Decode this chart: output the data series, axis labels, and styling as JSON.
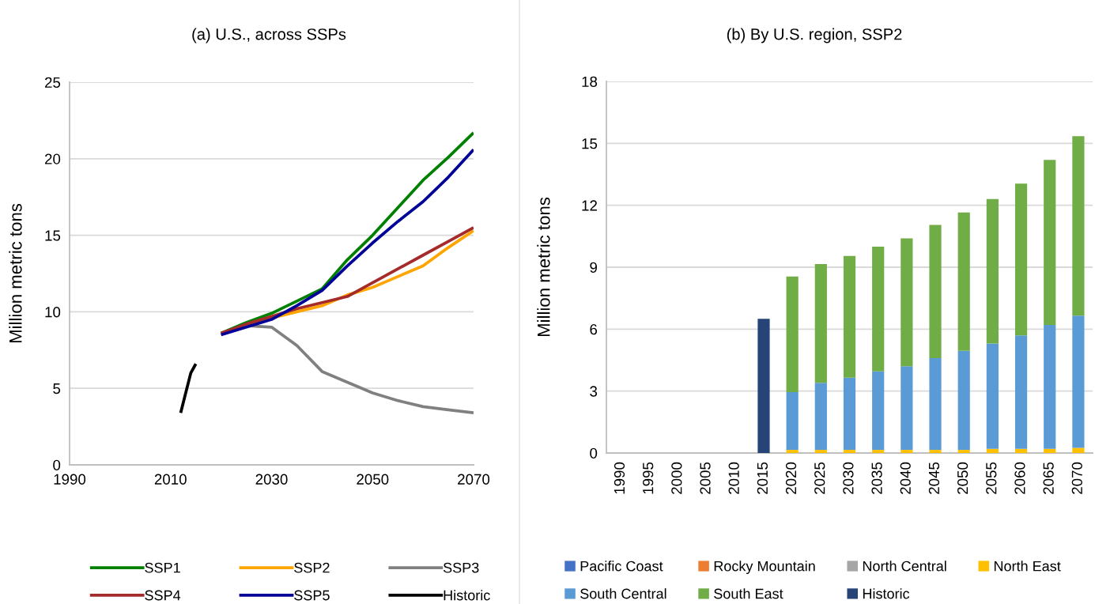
{
  "chart_data": [
    {
      "type": "line",
      "title": "(a) U.S., across SSPs",
      "ylabel": "Million metric tons",
      "x": [
        2020,
        2025,
        2030,
        2035,
        2040,
        2045,
        2050,
        2055,
        2060,
        2065,
        2070
      ],
      "xlim": [
        1990,
        2070
      ],
      "xticks": [
        1990,
        2010,
        2030,
        2050,
        2070
      ],
      "ylim": [
        0,
        25
      ],
      "yticks": [
        0,
        5,
        10,
        15,
        20,
        25
      ],
      "grid": "y",
      "legend": "bottom",
      "series": [
        {
          "name": "SSP1",
          "color": "#008000",
          "values": [
            8.6,
            9.3,
            9.9,
            10.7,
            11.5,
            13.4,
            15.0,
            16.8,
            18.6,
            20.1,
            21.7
          ]
        },
        {
          "name": "SSP2",
          "color": "#ffa500",
          "values": [
            8.6,
            9.1,
            9.6,
            10.0,
            10.4,
            11.1,
            11.6,
            12.3,
            13.0,
            14.2,
            15.3
          ]
        },
        {
          "name": "SSP3",
          "color": "#808080",
          "values": [
            8.6,
            9.1,
            9.0,
            7.8,
            6.1,
            5.4,
            4.7,
            4.2,
            3.8,
            3.6,
            3.4
          ]
        },
        {
          "name": "SSP4",
          "color": "#a52a2a",
          "values": [
            8.6,
            9.2,
            9.7,
            10.2,
            10.6,
            11.0,
            11.9,
            12.8,
            13.7,
            14.6,
            15.5
          ]
        },
        {
          "name": "SSP5",
          "color": "#000099",
          "values": [
            8.5,
            9.0,
            9.5,
            10.4,
            11.4,
            13.0,
            14.5,
            15.9,
            17.2,
            18.8,
            20.6
          ]
        },
        {
          "name": "Historic",
          "color": "#000000",
          "x": [
            2012,
            2014,
            2015
          ],
          "values": [
            3.4,
            6.0,
            6.6
          ]
        }
      ]
    },
    {
      "type": "bar",
      "stacked": true,
      "title": "(b) By U.S. region, SSP2",
      "ylabel": "Million metric tons",
      "categories": [
        "1990",
        "1995",
        "2000",
        "2005",
        "2010",
        "2015",
        "2020",
        "2025",
        "2030",
        "2035",
        "2040",
        "2045",
        "2050",
        "2055",
        "2060",
        "2065",
        "2070"
      ],
      "ylim": [
        0,
        18
      ],
      "yticks": [
        0,
        3,
        6,
        9,
        12,
        15,
        18
      ],
      "grid": "y",
      "legend": "bottom",
      "series": [
        {
          "name": "Pacific Coast",
          "color": "#4472c4",
          "values": [
            null,
            null,
            null,
            null,
            null,
            null,
            null,
            null,
            null,
            null,
            null,
            null,
            null,
            null,
            null,
            null,
            null
          ]
        },
        {
          "name": "Rocky Mountain",
          "color": "#ed7d31",
          "values": [
            null,
            null,
            null,
            null,
            null,
            null,
            null,
            null,
            null,
            null,
            null,
            null,
            null,
            null,
            null,
            null,
            null
          ]
        },
        {
          "name": "North Central",
          "color": "#a5a5a5",
          "values": [
            null,
            null,
            null,
            null,
            null,
            null,
            null,
            null,
            null,
            null,
            null,
            null,
            null,
            null,
            null,
            null,
            null
          ]
        },
        {
          "name": "North East",
          "color": "#ffc000",
          "values": [
            null,
            null,
            null,
            null,
            null,
            null,
            0.15,
            0.15,
            0.15,
            0.15,
            0.15,
            0.15,
            0.15,
            0.2,
            0.2,
            0.2,
            0.25
          ]
        },
        {
          "name": "South Central",
          "color": "#5b9bd5",
          "values": [
            null,
            null,
            null,
            null,
            null,
            null,
            2.8,
            3.25,
            3.5,
            3.8,
            4.05,
            4.45,
            4.8,
            5.1,
            5.5,
            6.0,
            6.4
          ]
        },
        {
          "name": "South East",
          "color": "#70ad47",
          "values": [
            null,
            null,
            null,
            null,
            null,
            null,
            5.6,
            5.75,
            5.9,
            6.05,
            6.2,
            6.45,
            6.7,
            7.0,
            7.35,
            8.0,
            8.7
          ]
        },
        {
          "name": "Historic",
          "color": "#264478",
          "values": [
            null,
            null,
            null,
            null,
            null,
            6.5,
            null,
            null,
            null,
            null,
            null,
            null,
            null,
            null,
            null,
            null,
            null
          ]
        }
      ]
    }
  ]
}
